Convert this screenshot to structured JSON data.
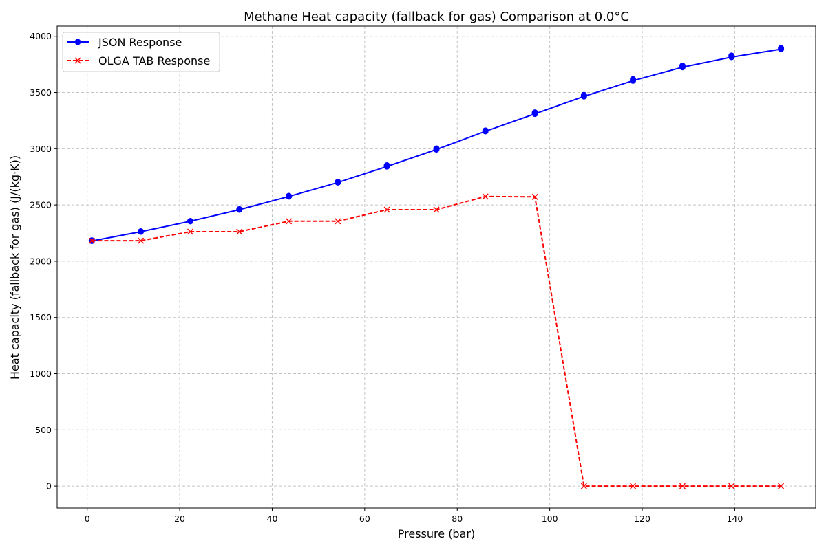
{
  "colors": {
    "json_series": "#0000ff",
    "olga_series": "#ff0000",
    "grid": "#c4c4c4",
    "axes": "#000000"
  },
  "chart_data": {
    "type": "line",
    "title": "Methane Heat capacity (fallback for gas) Comparison at 0.0°C",
    "xlabel": "Pressure (bar)",
    "ylabel": "Heat capacity (fallback for gas) (J/(kg·K))",
    "xlim": [
      -6.5,
      157.5
    ],
    "ylim": [
      -195,
      4090
    ],
    "xticks": [
      0,
      20,
      40,
      60,
      80,
      100,
      120,
      140
    ],
    "yticks": [
      0,
      500,
      1000,
      1500,
      2000,
      2500,
      3000,
      3500,
      4000
    ],
    "grid": true,
    "legend_position": "top-left",
    "series": [
      {
        "name": "JSON Response",
        "marker": "circle",
        "line_style": "solid",
        "x": [
          1.0,
          11.6,
          22.3,
          32.9,
          43.6,
          54.2,
          64.8,
          75.5,
          86.1,
          96.8,
          107.4,
          118.0,
          128.7,
          139.3,
          150.0
        ],
        "y": [
          2180,
          2262,
          2355,
          2458,
          2575,
          2700,
          2842,
          2993,
          3155,
          3310,
          3465,
          3605,
          3725,
          3815,
          3885
        ],
        "y_duplicate": [
          2185,
          2265,
          2357,
          2462,
          2580,
          2705,
          2852,
          3002,
          3162,
          3322,
          3478,
          3618,
          3738,
          3828,
          3895
        ]
      },
      {
        "name": "OLGA TAB Response",
        "marker": "x",
        "line_style": "dashed",
        "x": [
          1.0,
          11.6,
          22.3,
          32.9,
          43.6,
          54.2,
          64.8,
          75.5,
          86.1,
          96.8,
          107.4,
          118.0,
          128.7,
          139.3,
          150.0
        ],
        "y": [
          2182,
          2182,
          2262,
          2262,
          2355,
          2355,
          2458,
          2458,
          2575,
          2572,
          0,
          0,
          0,
          0,
          0
        ]
      }
    ]
  }
}
